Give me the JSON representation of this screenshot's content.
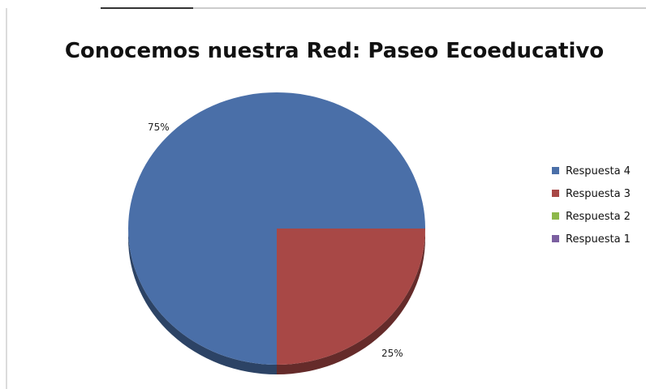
{
  "chart_data": {
    "type": "pie",
    "title": "Conocemos nuestra Red: Paseo Ecoeducativo",
    "series": [
      {
        "name": "Respuesta 4",
        "value": 75,
        "label": "75%",
        "color": "#4a6fa8"
      },
      {
        "name": "Respuesta 3",
        "value": 25,
        "label": "25%",
        "color": "#a84846"
      },
      {
        "name": "Respuesta 2",
        "value": 0,
        "label": "",
        "color": "#8db84a"
      },
      {
        "name": "Respuesta 1",
        "value": 0,
        "label": "",
        "color": "#7b5fa0"
      }
    ],
    "legend_position": "right",
    "style": "3d"
  }
}
